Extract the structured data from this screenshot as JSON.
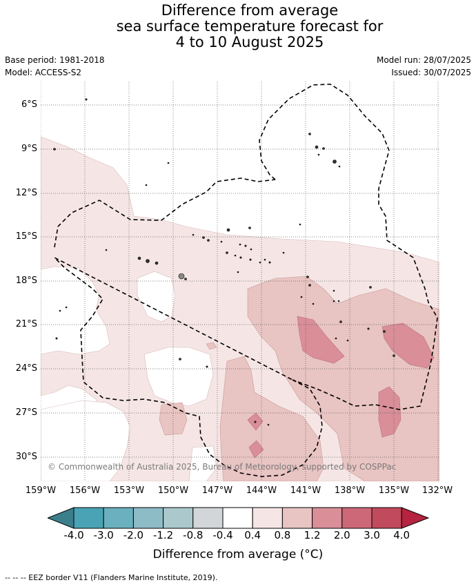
{
  "title": {
    "line1": "Difference from average",
    "line2": "sea surface temperature forecast for",
    "line3": "4 to 10 August 2025"
  },
  "meta": {
    "base_period": "Base period: 1981-2018",
    "model": "Model: ACCESS-S2",
    "model_run": "Model run: 28/07/2025",
    "issued": "Issued: 30/07/2025"
  },
  "map": {
    "lat_labels": [
      "6°S",
      "9°S",
      "12°S",
      "15°S",
      "18°S",
      "21°S",
      "24°S",
      "27°S",
      "30°S"
    ],
    "lon_labels": [
      "159°W",
      "156°W",
      "153°W",
      "150°W",
      "147°W",
      "144°W",
      "141°W",
      "138°W",
      "135°W",
      "132°W"
    ],
    "copyright": "© Commonwealth of Australia 2025, Bureau of Meteorology, supported by COSPPac",
    "gridlines": true
  },
  "colorbar": {
    "ticks": [
      "-4.0",
      "-3.0",
      "-2.0",
      "-1.2",
      "-0.8",
      "-0.4",
      "0.4",
      "0.8",
      "1.2",
      "2.0",
      "3.0",
      "4.0"
    ],
    "colors": {
      "lt_-4": "#3b7f8c",
      "-4_-3": "#4aa3b4",
      "-3_-2": "#6bb0bf",
      "-2_-1.2": "#8dbcc7",
      "-1.2_-0.8": "#abc9cd",
      "-0.8_-0.4": "#d2d6d8",
      "-0.4_0.4": "#ffffff",
      "0.4_0.8": "#f5e6e5",
      "0.8_1.2": "#e8c4c2",
      "1.2_2.0": "#d98e98",
      "2.0_3.0": "#cc6878",
      "3.0_4.0": "#c14a5c",
      "gt_4": "#b5233f"
    },
    "label": "Difference from average (°C)"
  },
  "footer": "--  --  -- EEZ border V11 (Flanders Marine Institute, 2019)."
}
